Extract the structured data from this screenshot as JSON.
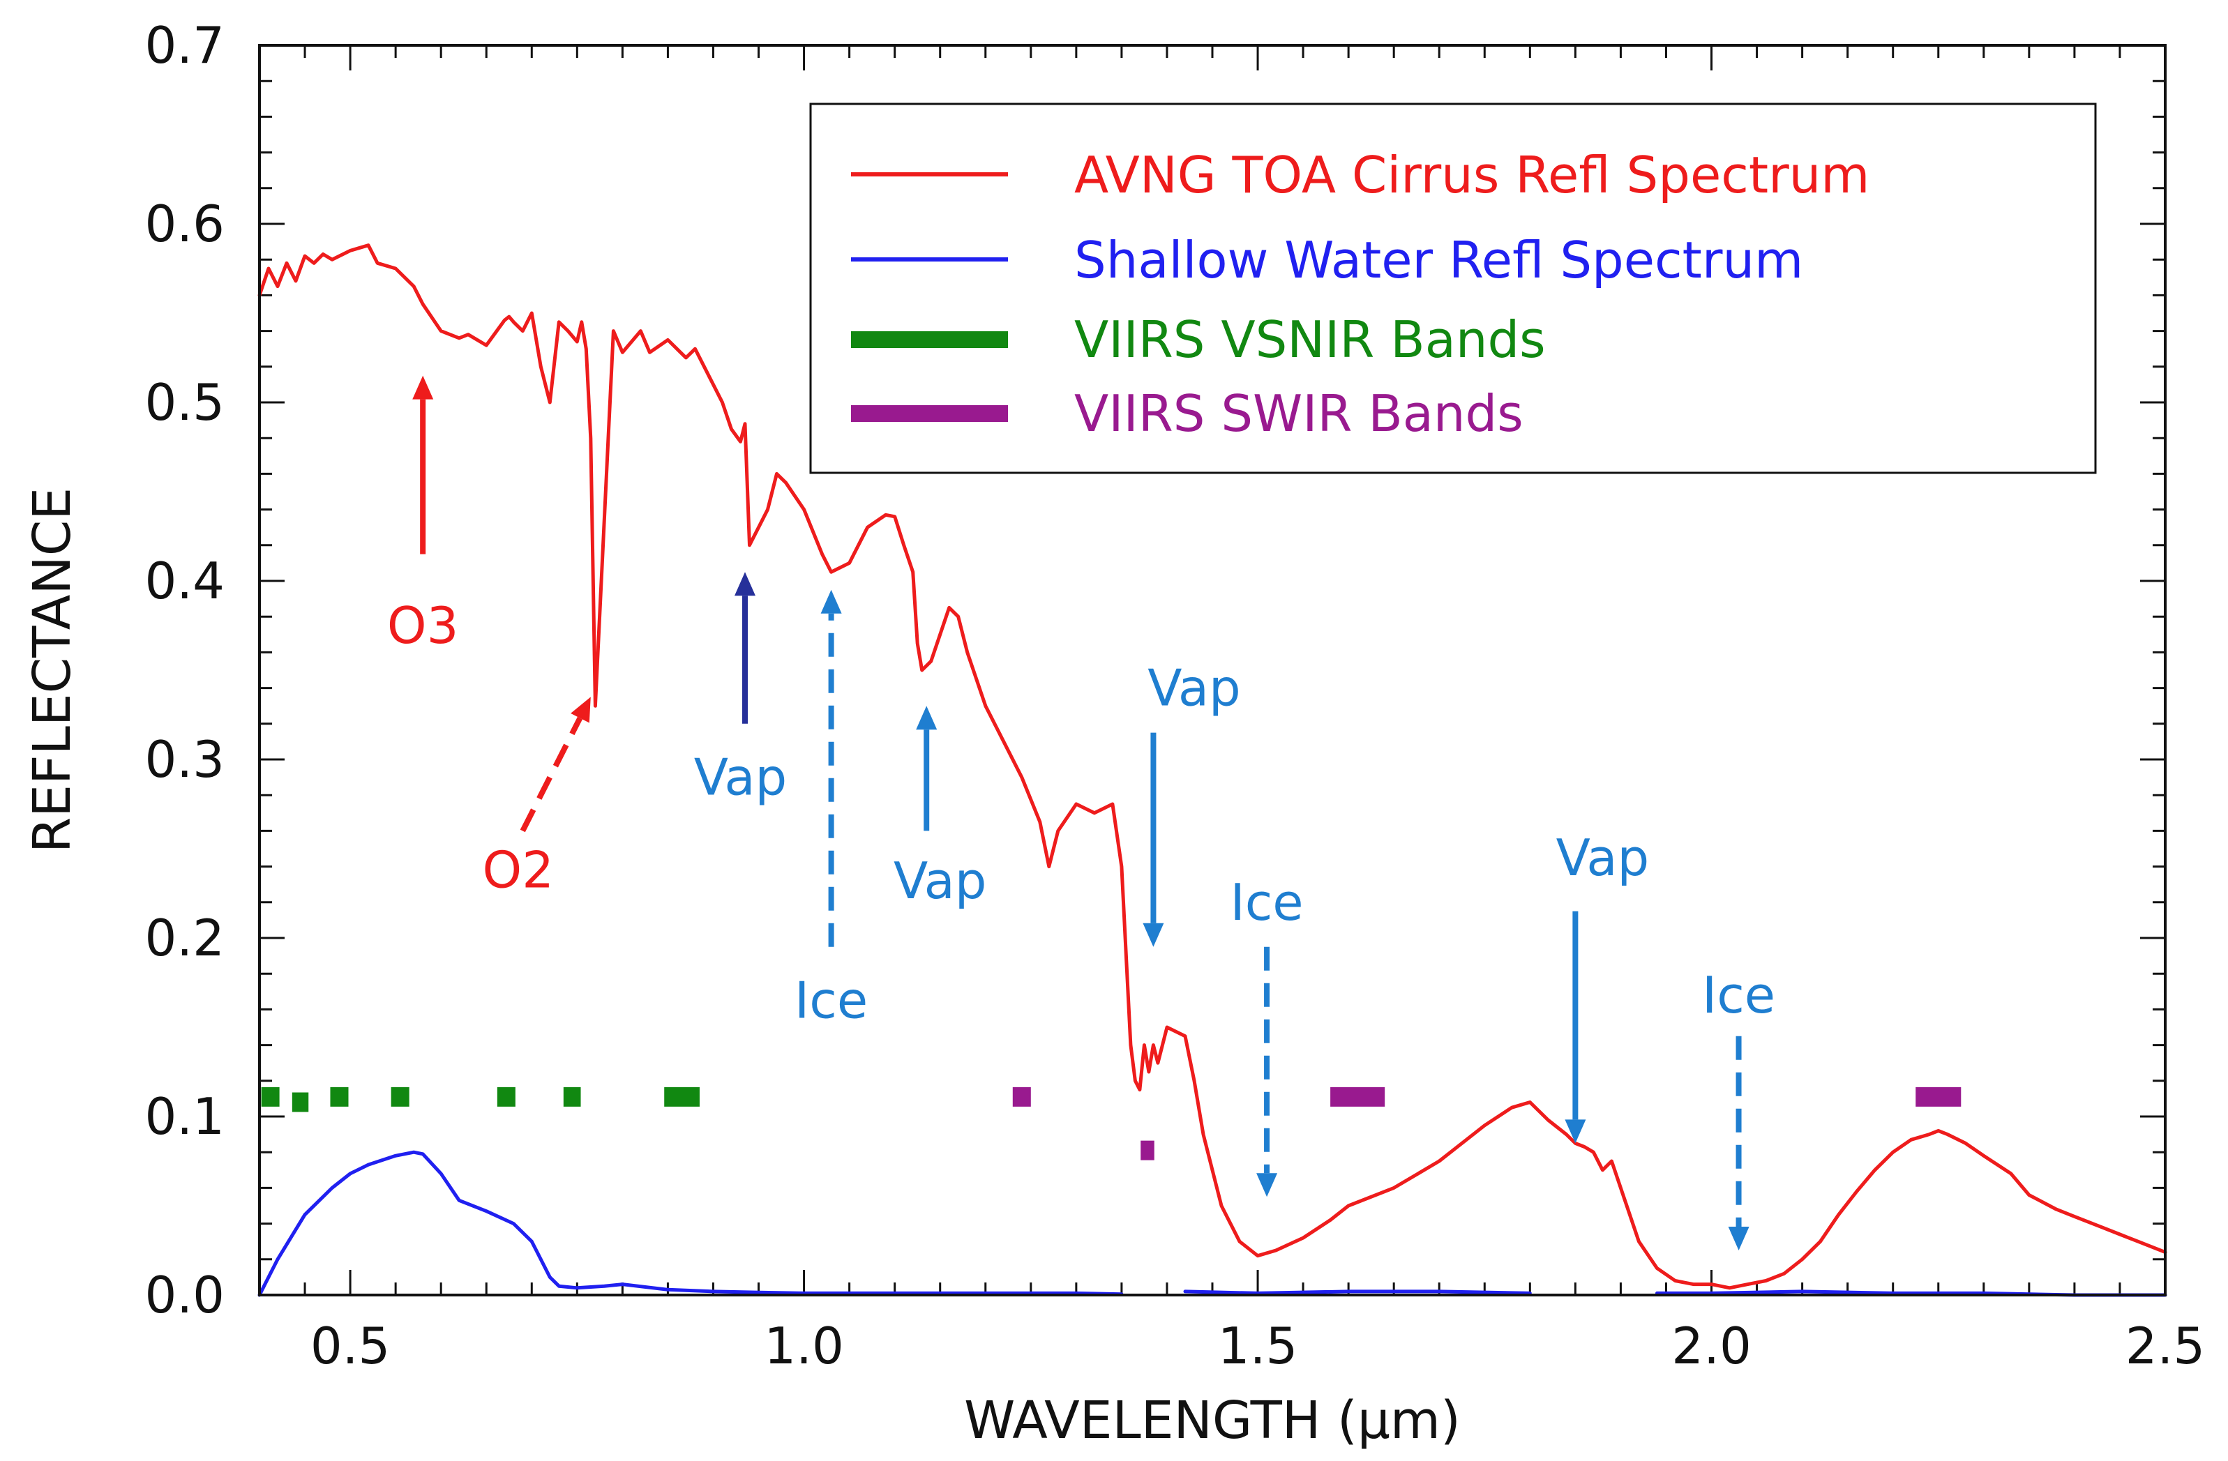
{
  "chart_data": {
    "type": "line",
    "xlabel": "WAVELENGTH (μm)",
    "ylabel": "REFLECTANCE",
    "xlim": [
      0.4,
      2.5
    ],
    "ylim": [
      0.0,
      0.7
    ],
    "x_ticks": [
      "0.5",
      "1.0",
      "1.5",
      "2.0",
      "2.5"
    ],
    "x_tick_values": [
      0.5,
      1.0,
      1.5,
      2.0,
      2.5
    ],
    "y_ticks": [
      "0.0",
      "0.1",
      "0.2",
      "0.3",
      "0.4",
      "0.5",
      "0.6",
      "0.7"
    ],
    "y_tick_values": [
      0.0,
      0.1,
      0.2,
      0.3,
      0.4,
      0.5,
      0.6,
      0.7
    ],
    "legend": {
      "position": "top-right",
      "entries": [
        {
          "label": "AVNG TOA Cirrus Refl Spectrum",
          "color": "#ee1c1c",
          "style": "line"
        },
        {
          "label": "Shallow Water Refl Spectrum",
          "color": "#2020f0",
          "style": "line"
        },
        {
          "label": "VIIRS VSNIR Bands",
          "color": "#118811",
          "style": "thick"
        },
        {
          "label": "VIIRS SWIR Bands",
          "color": "#991a8f",
          "style": "thick"
        }
      ]
    },
    "series": [
      {
        "name": "AVNG TOA Cirrus Refl Spectrum",
        "color": "#ee1c1c",
        "x": [
          0.4,
          0.41,
          0.42,
          0.43,
          0.44,
          0.45,
          0.46,
          0.47,
          0.48,
          0.5,
          0.52,
          0.53,
          0.55,
          0.57,
          0.58,
          0.6,
          0.62,
          0.63,
          0.65,
          0.67,
          0.675,
          0.68,
          0.69,
          0.7,
          0.71,
          0.72,
          0.73,
          0.74,
          0.75,
          0.755,
          0.76,
          0.765,
          0.77,
          0.79,
          0.8,
          0.82,
          0.83,
          0.85,
          0.87,
          0.88,
          0.9,
          0.91,
          0.92,
          0.93,
          0.935,
          0.94,
          0.95,
          0.96,
          0.97,
          0.98,
          1.0,
          1.02,
          1.03,
          1.05,
          1.07,
          1.09,
          1.1,
          1.11,
          1.12,
          1.125,
          1.13,
          1.14,
          1.15,
          1.16,
          1.17,
          1.18,
          1.2,
          1.22,
          1.24,
          1.26,
          1.27,
          1.28,
          1.3,
          1.32,
          1.34,
          1.35,
          1.36,
          1.365,
          1.37,
          1.375,
          1.38,
          1.385,
          1.39,
          1.4,
          1.42,
          1.43,
          1.44,
          1.46,
          1.48,
          1.5,
          1.52,
          1.55,
          1.58,
          1.6,
          1.65,
          1.7,
          1.75,
          1.78,
          1.8,
          1.82,
          1.84,
          1.85,
          1.86,
          1.87,
          1.88,
          1.89,
          1.9,
          1.92,
          1.94,
          1.96,
          1.98,
          2.0,
          2.02,
          2.04,
          2.06,
          2.08,
          2.1,
          2.12,
          2.14,
          2.16,
          2.18,
          2.2,
          2.22,
          2.24,
          2.25,
          2.26,
          2.28,
          2.3,
          2.33,
          2.35,
          2.38,
          2.4,
          2.43,
          2.45,
          2.47,
          2.5
        ],
        "y": [
          0.56,
          0.575,
          0.565,
          0.578,
          0.568,
          0.582,
          0.578,
          0.583,
          0.58,
          0.585,
          0.588,
          0.578,
          0.575,
          0.565,
          0.555,
          0.54,
          0.536,
          0.538,
          0.532,
          0.546,
          0.548,
          0.545,
          0.54,
          0.55,
          0.52,
          0.5,
          0.545,
          0.54,
          0.534,
          0.545,
          0.53,
          0.48,
          0.33,
          0.54,
          0.528,
          0.54,
          0.528,
          0.535,
          0.525,
          0.53,
          0.51,
          0.5,
          0.485,
          0.478,
          0.488,
          0.42,
          0.43,
          0.44,
          0.46,
          0.455,
          0.44,
          0.415,
          0.405,
          0.41,
          0.43,
          0.437,
          0.436,
          0.42,
          0.405,
          0.365,
          0.35,
          0.355,
          0.37,
          0.385,
          0.38,
          0.36,
          0.33,
          0.31,
          0.29,
          0.265,
          0.24,
          0.26,
          0.275,
          0.27,
          0.275,
          0.24,
          0.14,
          0.12,
          0.115,
          0.14,
          0.125,
          0.14,
          0.13,
          0.15,
          0.145,
          0.12,
          0.09,
          0.05,
          0.03,
          0.022,
          0.025,
          0.032,
          0.042,
          0.05,
          0.06,
          0.075,
          0.095,
          0.105,
          0.108,
          0.098,
          0.09,
          0.085,
          0.083,
          0.08,
          0.07,
          0.075,
          0.06,
          0.03,
          0.015,
          0.008,
          0.006,
          0.006,
          0.004,
          0.006,
          0.008,
          0.012,
          0.02,
          0.03,
          0.045,
          0.058,
          0.07,
          0.08,
          0.087,
          0.09,
          0.092,
          0.09,
          0.085,
          0.078,
          0.068,
          0.056,
          0.048,
          0.044,
          0.038,
          0.034,
          0.03,
          0.024
        ]
      },
      {
        "name": "Shallow Water Refl Spectrum",
        "color": "#2020f0",
        "x": [
          0.4,
          0.42,
          0.45,
          0.48,
          0.5,
          0.52,
          0.55,
          0.57,
          0.58,
          0.6,
          0.62,
          0.65,
          0.68,
          0.7,
          0.72,
          0.73,
          0.75,
          0.78,
          0.8,
          0.85,
          0.9,
          0.95,
          1.0,
          1.1,
          1.2,
          1.3,
          1.35
        ],
        "y": [
          0.0,
          0.02,
          0.045,
          0.06,
          0.068,
          0.073,
          0.078,
          0.08,
          0.079,
          0.068,
          0.053,
          0.047,
          0.04,
          0.03,
          0.01,
          0.005,
          0.004,
          0.005,
          0.006,
          0.003,
          0.002,
          0.0015,
          0.001,
          0.001,
          0.001,
          0.001,
          0.0005
        ]
      },
      {
        "name": "Shallow Water Refl Spectrum",
        "color": "#2020f0",
        "x": [
          1.42,
          1.5,
          1.6,
          1.7,
          1.8
        ],
        "y": [
          0.002,
          0.001,
          0.002,
          0.002,
          0.001
        ]
      },
      {
        "name": "Shallow Water Refl Spectrum",
        "color": "#2020f0",
        "x": [
          1.94,
          2.0,
          2.1,
          2.2,
          2.3,
          2.4,
          2.5
        ],
        "y": [
          0.001,
          0.001,
          0.002,
          0.001,
          0.001,
          0.0,
          0.0
        ]
      }
    ],
    "vsnir_bands": [
      {
        "x0": 0.402,
        "x1": 0.422,
        "y": 0.111
      },
      {
        "x0": 0.436,
        "x1": 0.454,
        "y": 0.108
      },
      {
        "x0": 0.478,
        "x1": 0.498,
        "y": 0.111
      },
      {
        "x0": 0.545,
        "x1": 0.565,
        "y": 0.111
      },
      {
        "x0": 0.662,
        "x1": 0.682,
        "y": 0.111
      },
      {
        "x0": 0.735,
        "x1": 0.754,
        "y": 0.111
      },
      {
        "x0": 0.846,
        "x1": 0.885,
        "y": 0.111
      }
    ],
    "swir_bands": [
      {
        "x0": 1.23,
        "x1": 1.25,
        "y": 0.111
      },
      {
        "x0": 1.371,
        "x1": 1.386,
        "y": 0.081
      },
      {
        "x0": 1.58,
        "x1": 1.64,
        "y": 0.111
      },
      {
        "x0": 2.225,
        "x1": 2.275,
        "y": 0.111
      }
    ],
    "annotations": [
      {
        "label": "O3",
        "color": "#ee1c1c",
        "style": "solid",
        "dir": "up",
        "x": 0.58,
        "y_from": 0.415,
        "y_to": 0.515,
        "text_x": 0.58,
        "text_y": 0.375
      },
      {
        "label": "O2",
        "color": "#ee1c1c",
        "style": "dashed",
        "dir": "diag",
        "x_from": 0.69,
        "y_from": 0.26,
        "x_to": 0.765,
        "y_to": 0.335,
        "text_x": 0.685,
        "text_y": 0.238
      },
      {
        "label": "Vap",
        "color": "#26309a",
        "style": "solid",
        "dir": "up",
        "x": 0.935,
        "y_from": 0.32,
        "y_to": 0.405,
        "text_x": 0.93,
        "text_y": 0.29,
        "label_color": "#1f7ed0"
      },
      {
        "label": "Ice",
        "color": "#1f7ed0",
        "style": "dashed",
        "dir": "up",
        "x": 1.03,
        "y_from": 0.195,
        "y_to": 0.395,
        "text_x": 1.03,
        "text_y": 0.165
      },
      {
        "label": "Vap",
        "color": "#1f7ed0",
        "style": "solid",
        "dir": "up",
        "x": 1.135,
        "y_from": 0.26,
        "y_to": 0.33,
        "text_x": 1.15,
        "text_y": 0.232
      },
      {
        "label": "Vap",
        "color": "#1f7ed0",
        "style": "solid",
        "dir": "down",
        "x": 1.385,
        "y_from": 0.315,
        "y_to": 0.195,
        "text_x": 1.43,
        "text_y": 0.34
      },
      {
        "label": "Ice",
        "color": "#1f7ed0",
        "style": "dashed",
        "dir": "down",
        "x": 1.51,
        "y_from": 0.195,
        "y_to": 0.055,
        "text_x": 1.51,
        "text_y": 0.22
      },
      {
        "label": "Vap",
        "color": "#1f7ed0",
        "style": "solid",
        "dir": "down",
        "x": 1.85,
        "y_from": 0.215,
        "y_to": 0.085,
        "text_x": 1.88,
        "text_y": 0.245
      },
      {
        "label": "Ice",
        "color": "#1f7ed0",
        "style": "dashed",
        "dir": "down",
        "x": 2.03,
        "y_from": 0.145,
        "y_to": 0.025,
        "text_x": 2.03,
        "text_y": 0.168
      }
    ]
  }
}
